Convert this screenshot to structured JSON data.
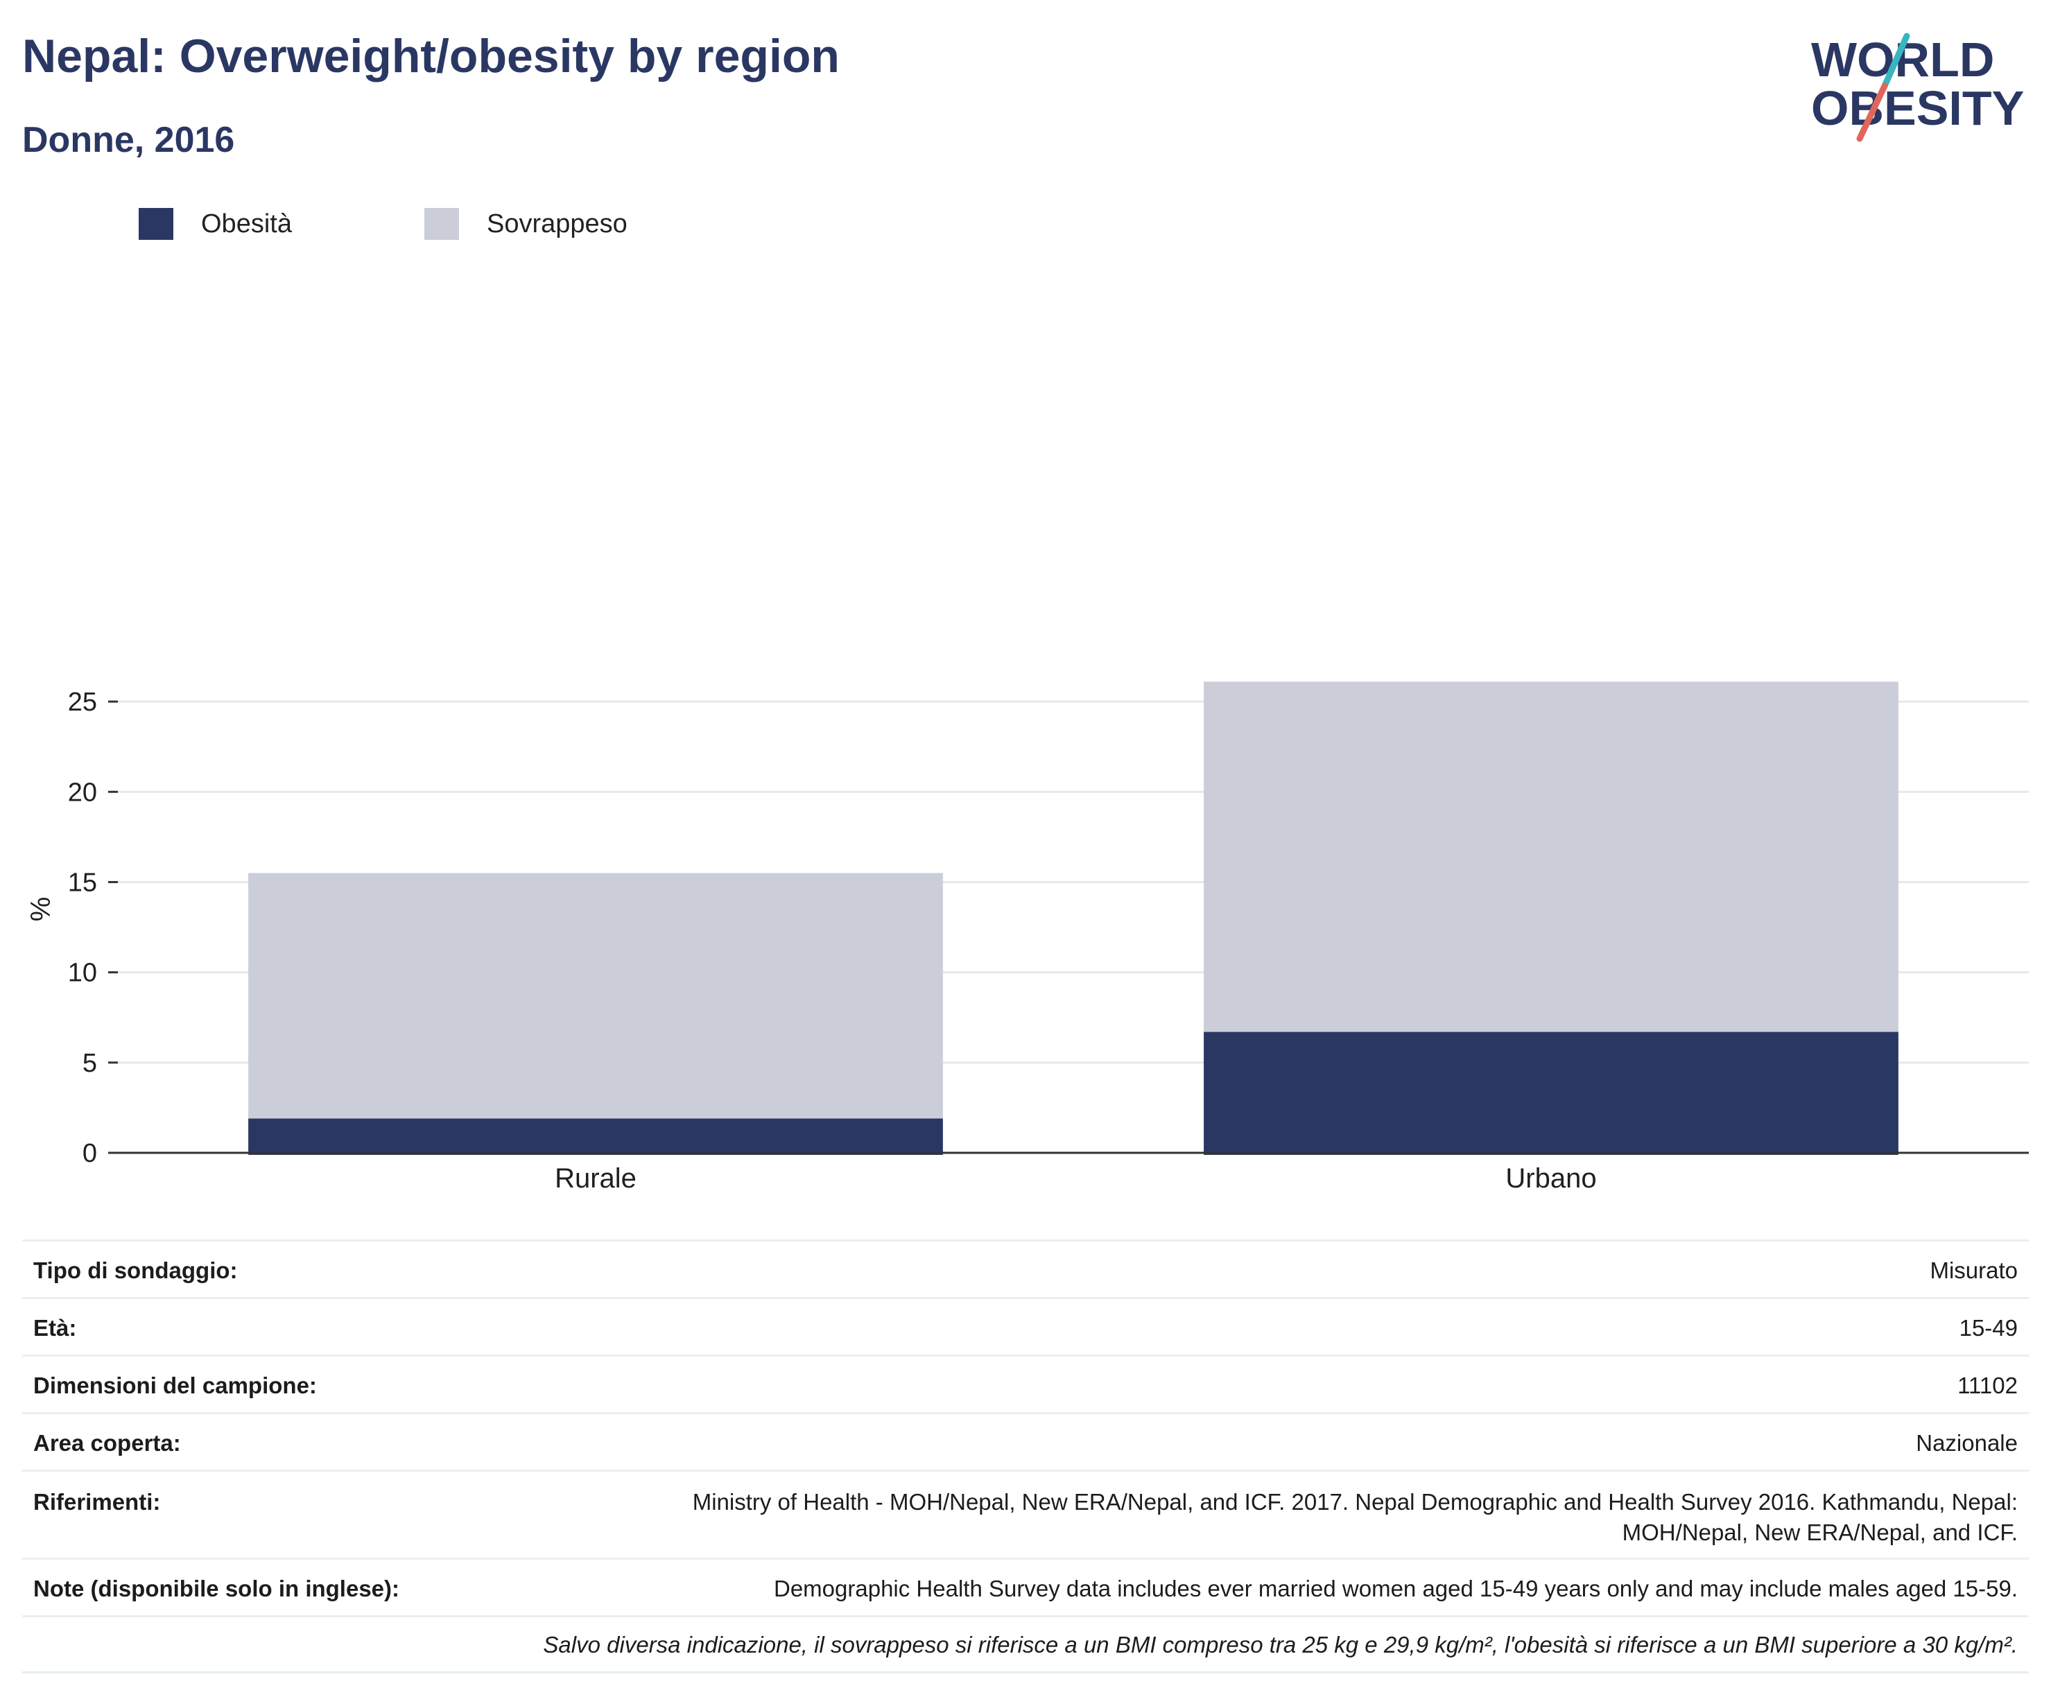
{
  "header": {
    "title": "Nepal: Overweight/obesity by region",
    "subtitle": "Donne, 2016"
  },
  "logo": {
    "line1": "WORLD",
    "line2": "OBESITY",
    "colors": {
      "text": "#2b3763",
      "slash_teal": "#38b6bf",
      "slash_red": "#e0675a"
    }
  },
  "colors": {
    "obesity": "#2b3763",
    "overweight": "#cbcdd8",
    "axis": "#333333",
    "grid": "#e8e8e8",
    "text": "#1f1f1f"
  },
  "chart_data": {
    "type": "bar",
    "stacked": true,
    "title": "",
    "xlabel": "",
    "ylabel": "%",
    "categories": [
      "Rurale",
      "Urbano"
    ],
    "series": [
      {
        "name": "Obesità",
        "values": [
          1.9,
          6.7
        ],
        "color": "#2b3763"
      },
      {
        "name": "Sovrappeso",
        "values": [
          13.6,
          19.4
        ],
        "color": "#cbcdd8"
      }
    ],
    "ylim": [
      0,
      27
    ],
    "yticks": [
      0,
      5,
      10,
      15,
      20,
      25
    ],
    "grid": true,
    "legend": "top-left"
  },
  "meta": {
    "survey_type_label": "Tipo di sondaggio:",
    "survey_type_value": "Misurato",
    "age_label": "Età:",
    "age_value": "15-49",
    "sample_label": "Dimensioni del campione:",
    "sample_value": "11102",
    "area_label": "Area coperta:",
    "area_value": "Nazionale",
    "refs_label": "Riferimenti:",
    "refs_value": "Ministry of Health - MOH/Nepal, New ERA/Nepal, and ICF. 2017. Nepal Demographic and Health Survey 2016. Kathmandu, Nepal: MOH/Nepal, New ERA/Nepal, and ICF.",
    "notes_label": "Note (disponibile solo in inglese):",
    "notes_value": "Demographic Health Survey data includes ever married women aged 15-49 years only and may include males aged 15-59.",
    "footnote": "Salvo diversa indicazione, il sovrappeso si riferisce a un BMI compreso tra 25 kg e 29,9 kg/m², l'obesità si riferisce a un BMI superiore a 30 kg/m²."
  }
}
